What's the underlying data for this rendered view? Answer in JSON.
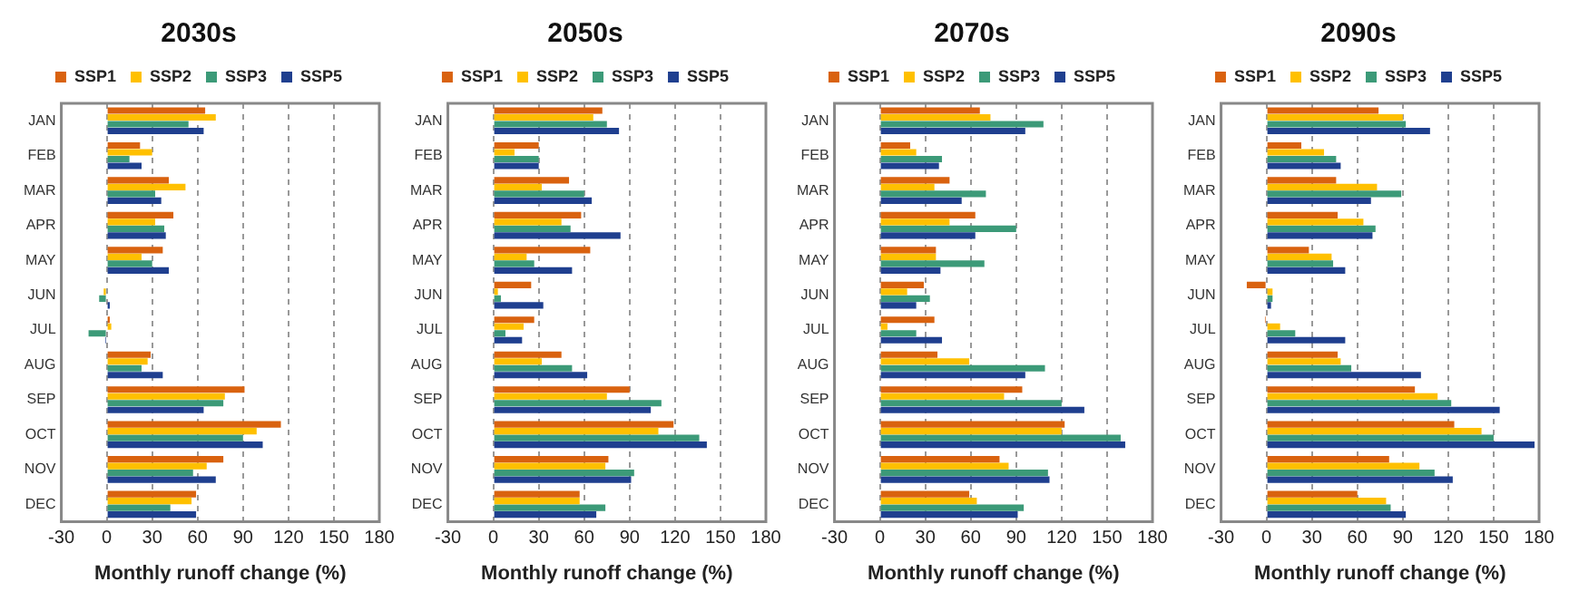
{
  "chart_data": [
    {
      "type": "bar",
      "orientation": "horizontal",
      "title": "2030s",
      "xlabel": "Monthly runoff change (%)",
      "categories": [
        "JAN",
        "FEB",
        "MAR",
        "APR",
        "MAY",
        "JUN",
        "JUL",
        "AUG",
        "SEP",
        "OCT",
        "NOV",
        "DEC"
      ],
      "xlim": [
        -30,
        180
      ],
      "xticks": [
        -30,
        0,
        30,
        60,
        90,
        120,
        150,
        180
      ],
      "grid": "x",
      "legend": "top",
      "series": [
        {
          "name": "SSP1",
          "color": "#d9620f",
          "values": [
            65,
            22,
            41,
            44,
            37,
            0,
            2,
            29,
            91,
            115,
            77,
            59
          ]
        },
        {
          "name": "SSP2",
          "color": "#ffc000",
          "values": [
            72,
            30,
            52,
            32,
            23,
            -2,
            3,
            27,
            78,
            99,
            66,
            56
          ]
        },
        {
          "name": "SSP3",
          "color": "#3c9a78",
          "values": [
            54,
            15,
            32,
            38,
            30,
            -5,
            -12,
            23,
            77,
            90,
            57,
            42
          ]
        },
        {
          "name": "SSP5",
          "color": "#1f3f8f",
          "values": [
            64,
            23,
            36,
            39,
            41,
            2,
            -1,
            37,
            64,
            103,
            72,
            59
          ]
        }
      ]
    },
    {
      "type": "bar",
      "orientation": "horizontal",
      "title": "2050s",
      "xlabel": "Monthly runoff change (%)",
      "categories": [
        "JAN",
        "FEB",
        "MAR",
        "APR",
        "MAY",
        "JUN",
        "JUL",
        "AUG",
        "SEP",
        "OCT",
        "NOV",
        "DEC"
      ],
      "xlim": [
        -30,
        180
      ],
      "xticks": [
        -30,
        0,
        30,
        60,
        90,
        120,
        150,
        180
      ],
      "grid": "x",
      "legend": "top",
      "series": [
        {
          "name": "SSP1",
          "color": "#d9620f",
          "values": [
            72,
            30,
            50,
            58,
            64,
            25,
            27,
            45,
            90,
            119,
            76,
            57
          ]
        },
        {
          "name": "SSP2",
          "color": "#ffc000",
          "values": [
            66,
            14,
            32,
            45,
            22,
            3,
            20,
            32,
            75,
            109,
            74,
            57
          ]
        },
        {
          "name": "SSP3",
          "color": "#3c9a78",
          "values": [
            75,
            30,
            60,
            51,
            27,
            5,
            8,
            52,
            111,
            136,
            93,
            74
          ]
        },
        {
          "name": "SSP5",
          "color": "#1f3f8f",
          "values": [
            83,
            30,
            65,
            84,
            52,
            33,
            19,
            62,
            104,
            141,
            91,
            68
          ]
        }
      ]
    },
    {
      "type": "bar",
      "orientation": "horizontal",
      "title": "2070s",
      "xlabel": "Monthly runoff change (%)",
      "categories": [
        "JAN",
        "FEB",
        "MAR",
        "APR",
        "MAY",
        "JUN",
        "JUL",
        "AUG",
        "SEP",
        "OCT",
        "NOV",
        "DEC"
      ],
      "xlim": [
        -30,
        180
      ],
      "xticks": [
        -30,
        0,
        30,
        60,
        90,
        120,
        150,
        180
      ],
      "grid": "x",
      "legend": "top",
      "series": [
        {
          "name": "SSP1",
          "color": "#d9620f",
          "values": [
            66,
            20,
            46,
            63,
            37,
            29,
            36,
            38,
            94,
            122,
            79,
            59
          ]
        },
        {
          "name": "SSP2",
          "color": "#ffc000",
          "values": [
            73,
            24,
            36,
            46,
            37,
            18,
            5,
            59,
            82,
            120,
            85,
            64
          ]
        },
        {
          "name": "SSP3",
          "color": "#3c9a78",
          "values": [
            108,
            41,
            70,
            90,
            69,
            33,
            24,
            109,
            120,
            159,
            111,
            95
          ]
        },
        {
          "name": "SSP5",
          "color": "#1f3f8f",
          "values": [
            96,
            39,
            54,
            63,
            40,
            24,
            41,
            96,
            135,
            162,
            112,
            91
          ]
        }
      ]
    },
    {
      "type": "bar",
      "orientation": "horizontal",
      "title": "2090s",
      "xlabel": "Monthly runoff change (%)",
      "categories": [
        "JAN",
        "FEB",
        "MAR",
        "APR",
        "MAY",
        "JUN",
        "JUL",
        "AUG",
        "SEP",
        "OCT",
        "NOV",
        "DEC"
      ],
      "xlim": [
        -30,
        180
      ],
      "xticks": [
        -30,
        0,
        30,
        60,
        90,
        120,
        150,
        180
      ],
      "grid": "x",
      "legend": "top",
      "series": [
        {
          "name": "SSP1",
          "color": "#d9620f",
          "values": [
            74,
            23,
            46,
            47,
            28,
            -13,
            -1,
            47,
            98,
            124,
            81,
            60
          ]
        },
        {
          "name": "SSP2",
          "color": "#ffc000",
          "values": [
            90,
            38,
            73,
            64,
            43,
            4,
            9,
            49,
            113,
            142,
            101,
            79
          ]
        },
        {
          "name": "SSP3",
          "color": "#3c9a78",
          "values": [
            92,
            46,
            89,
            72,
            44,
            4,
            19,
            56,
            122,
            150,
            111,
            82
          ]
        },
        {
          "name": "SSP5",
          "color": "#1f3f8f",
          "values": [
            108,
            49,
            69,
            70,
            52,
            3,
            52,
            102,
            154,
            177,
            123,
            92
          ]
        }
      ]
    }
  ]
}
